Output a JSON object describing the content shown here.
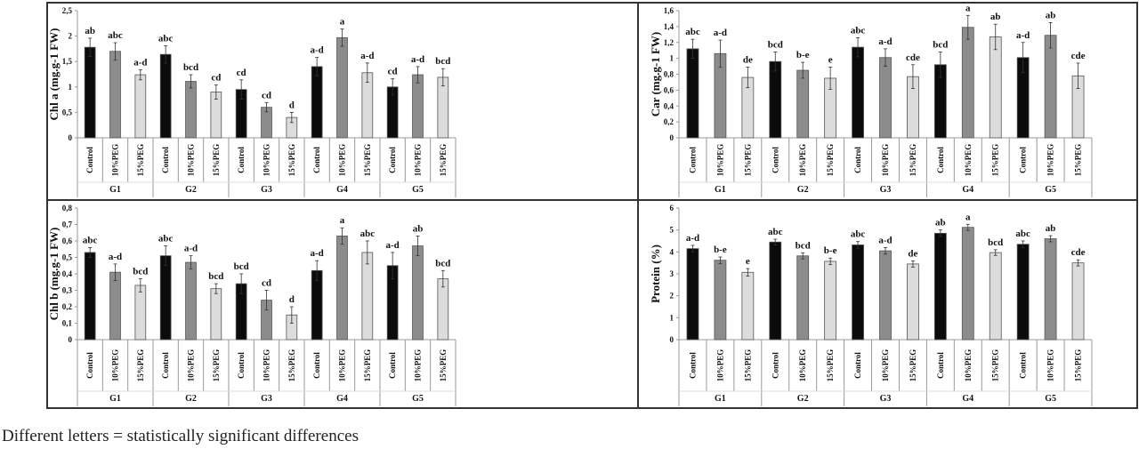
{
  "caption": "Different letters = statistically significant differences",
  "colors": {
    "Control": "#0b0b0b",
    "10%PEG": "#8c8c8c",
    "15%PEG": "#dcdcdc",
    "frame": "#333333",
    "axis": "#9a9a9a"
  },
  "chart_data": [
    {
      "type": "bar",
      "ylabel": "Chl a (mg.g-1 FW)",
      "ylim": [
        0,
        2.5
      ],
      "yticks": [
        "0",
        "0,5",
        "1",
        "1,5",
        "2",
        "2,5"
      ],
      "groups": [
        "G1",
        "G2",
        "G3",
        "G4",
        "G5"
      ],
      "categories": [
        "Control",
        "10%PEG",
        "15%PEG"
      ],
      "values": [
        [
          1.78,
          1.7,
          1.24
        ],
        [
          1.64,
          1.11,
          0.9
        ],
        [
          0.95,
          0.6,
          0.4
        ],
        [
          1.4,
          1.97,
          1.28
        ],
        [
          1.0,
          1.24,
          1.19
        ]
      ],
      "errors": [
        [
          0.18,
          0.17,
          0.1
        ],
        [
          0.17,
          0.13,
          0.14
        ],
        [
          0.19,
          0.09,
          0.1
        ],
        [
          0.18,
          0.17,
          0.19
        ],
        [
          0.16,
          0.16,
          0.17
        ]
      ],
      "letters": [
        [
          "ab",
          "abc",
          "a-d"
        ],
        [
          "abc",
          "bcd",
          "cd"
        ],
        [
          "cd",
          "cd",
          "d"
        ],
        [
          "a-d",
          "a",
          "a-d"
        ],
        [
          "cd",
          "a-d",
          "bcd"
        ]
      ]
    },
    {
      "type": "bar",
      "ylabel": "Car (mg.g-1 FW)",
      "ylim": [
        0,
        1.6
      ],
      "yticks": [
        "0",
        "0,2",
        "0,4",
        "0,6",
        "0,8",
        "1",
        "1,2",
        "1,4",
        "1,6"
      ],
      "groups": [
        "G1",
        "G2",
        "G3",
        "G4",
        "G5"
      ],
      "categories": [
        "Control",
        "10%PEG",
        "15%PEG"
      ],
      "values": [
        [
          1.12,
          1.06,
          0.76
        ],
        [
          0.96,
          0.85,
          0.75
        ],
        [
          1.14,
          1.01,
          0.77
        ],
        [
          0.92,
          1.39,
          1.27
        ],
        [
          1.01,
          1.29,
          0.78
        ]
      ],
      "errors": [
        [
          0.12,
          0.17,
          0.13
        ],
        [
          0.12,
          0.1,
          0.14
        ],
        [
          0.12,
          0.11,
          0.15
        ],
        [
          0.16,
          0.15,
          0.16
        ],
        [
          0.19,
          0.16,
          0.16
        ]
      ],
      "letters": [
        [
          "abc",
          "a-d",
          "de"
        ],
        [
          "bcd",
          "b-e",
          "e"
        ],
        [
          "abc",
          "a-d",
          "cde"
        ],
        [
          "bcd",
          "a",
          "ab"
        ],
        [
          "a-d",
          "ab",
          "cde"
        ]
      ]
    },
    {
      "type": "bar",
      "ylabel": "Chl b (mg.g-1 FW)",
      "ylim": [
        0,
        0.8
      ],
      "yticks": [
        "0",
        "0,1",
        "0,2",
        "0,3",
        "0,4",
        "0,5",
        "0,6",
        "0,7",
        "0,8"
      ],
      "groups": [
        "G1",
        "G2",
        "G3",
        "G4",
        "G5"
      ],
      "categories": [
        "Control",
        "10%PEG",
        "15%PEG"
      ],
      "values": [
        [
          0.53,
          0.41,
          0.33
        ],
        [
          0.51,
          0.47,
          0.31
        ],
        [
          0.34,
          0.24,
          0.15
        ],
        [
          0.42,
          0.63,
          0.53
        ],
        [
          0.45,
          0.57,
          0.37
        ]
      ],
      "errors": [
        [
          0.03,
          0.05,
          0.04
        ],
        [
          0.06,
          0.04,
          0.03
        ],
        [
          0.06,
          0.06,
          0.05
        ],
        [
          0.06,
          0.05,
          0.07
        ],
        [
          0.08,
          0.06,
          0.05
        ]
      ],
      "letters": [
        [
          "abc",
          "a-d",
          "bcd"
        ],
        [
          "abc",
          "a-d",
          "bcd"
        ],
        [
          "bcd",
          "cd",
          "d"
        ],
        [
          "a-d",
          "a",
          "abc"
        ],
        [
          "a-d",
          "ab",
          "bcd"
        ]
      ]
    },
    {
      "type": "bar",
      "ylabel": "Protein (%)",
      "ylim": [
        0,
        6
      ],
      "yticks": [
        "0",
        "1",
        "2",
        "3",
        "4",
        "5",
        "6"
      ],
      "groups": [
        "G1",
        "G2",
        "G3",
        "G4",
        "G5"
      ],
      "categories": [
        "Control",
        "10%PEG",
        "15%PEG"
      ],
      "values": [
        [
          4.15,
          3.62,
          3.07
        ],
        [
          4.45,
          3.82,
          3.57
        ],
        [
          4.32,
          4.05,
          3.45
        ],
        [
          4.85,
          5.12,
          3.97
        ],
        [
          4.35,
          4.6,
          3.5
        ]
      ],
      "errors": [
        [
          0.15,
          0.15,
          0.17
        ],
        [
          0.13,
          0.14,
          0.15
        ],
        [
          0.15,
          0.15,
          0.14
        ],
        [
          0.15,
          0.14,
          0.13
        ],
        [
          0.15,
          0.14,
          0.14
        ]
      ],
      "letters": [
        [
          "a-d",
          "b-e",
          "e"
        ],
        [
          "abc",
          "bcd",
          "b-e"
        ],
        [
          "abc",
          "a-d",
          "de"
        ],
        [
          "ab",
          "a",
          "bcd"
        ],
        [
          "abc",
          "ab",
          "cde"
        ]
      ]
    }
  ]
}
